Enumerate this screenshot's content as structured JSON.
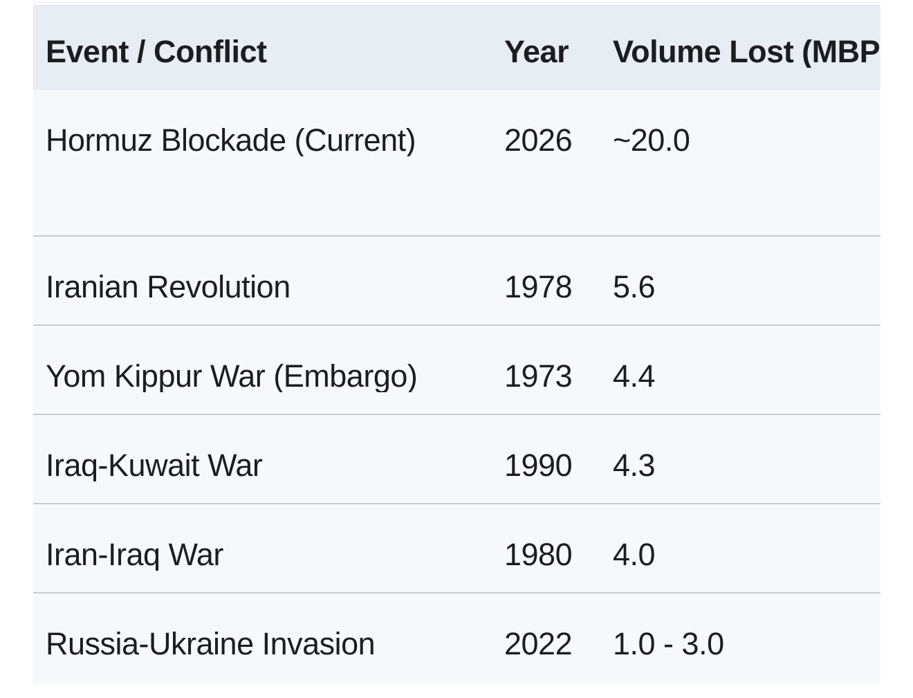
{
  "colors": {
    "page_bg": "#ffffff",
    "header_bg": "#e8ecf3",
    "row_bg": "#f7f8fb",
    "separator": "#c9cbcf",
    "text": "#1b1d21"
  },
  "table": {
    "columns": [
      {
        "label": "Event / Conflict"
      },
      {
        "label": "Year"
      },
      {
        "label": "Volume Lost (MBP"
      }
    ],
    "rows": [
      {
        "event": "Hormuz Blockade (Current)",
        "year": "2026",
        "volume": "~20.0"
      },
      {
        "event": "Iranian Revolution",
        "year": "1978",
        "volume": "5.6"
      },
      {
        "event": "Yom Kippur War (Embargo)",
        "year": "1973",
        "volume": "4.4"
      },
      {
        "event": "Iraq-Kuwait War",
        "year": "1990",
        "volume": "4.3"
      },
      {
        "event": "Iran-Iraq War",
        "year": "1980",
        "volume": "4.0"
      },
      {
        "event": "Russia-Ukraine Invasion",
        "year": "2022",
        "volume": "1.0 - 3.0"
      }
    ]
  },
  "chart_data": {
    "type": "table",
    "title": "",
    "columns": [
      "Event / Conflict",
      "Year",
      "Volume Lost (MBP"
    ],
    "rows": [
      [
        "Hormuz Blockade (Current)",
        "2026",
        "~20.0"
      ],
      [
        "Iranian Revolution",
        "1978",
        "5.6"
      ],
      [
        "Yom Kippur War (Embargo)",
        "1973",
        "4.4"
      ],
      [
        "Iraq-Kuwait War",
        "1990",
        "4.3"
      ],
      [
        "Iran-Iraq War",
        "1980",
        "4.0"
      ],
      [
        "Russia-Ukraine Invasion",
        "2022",
        "1.0 - 3.0"
      ]
    ]
  }
}
